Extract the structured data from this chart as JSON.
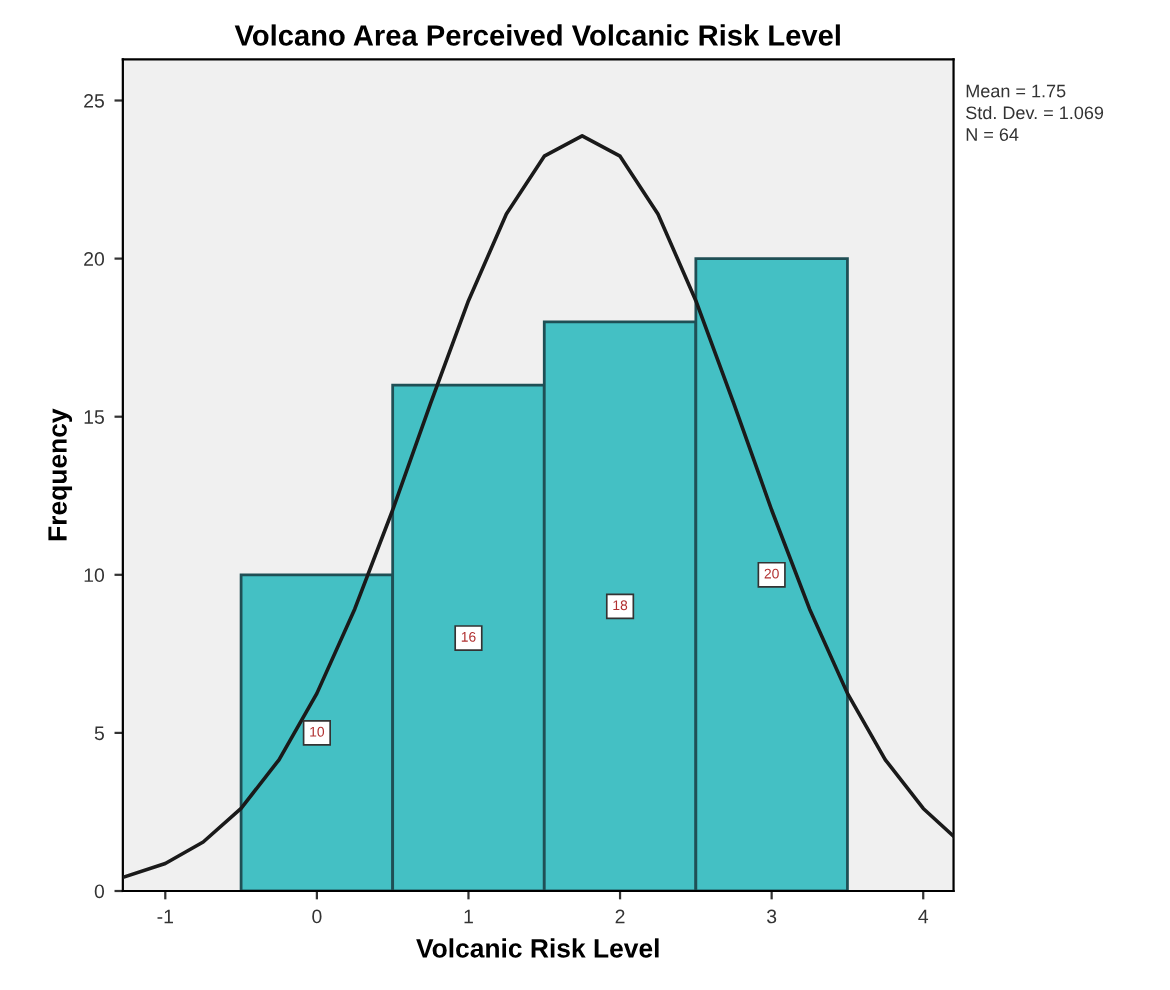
{
  "chart_data": {
    "type": "histogram",
    "title": "Volcano Area Perceived Volcanic Risk Level",
    "xlabel": "Volcanic Risk Level",
    "ylabel": "Frequency",
    "annotations": [
      "Mean = 1.75",
      "Std. Dev. = 1.069",
      "N = 64"
    ],
    "series": [
      {
        "color": "#44c0c4",
        "bins": [
          -0.5,
          0.5,
          1.5,
          2.5,
          3.5
        ],
        "values": [
          10,
          16,
          18,
          20
        ],
        "value_labels": [
          "10",
          "16",
          "18",
          "20"
        ]
      },
      {
        "type": "line",
        "color": "#1a1a1a",
        "x": [
          -1.28,
          -1.0,
          -0.75,
          -0.5,
          -0.25,
          0,
          0.25,
          0.5,
          0.75,
          1.0,
          1.25,
          1.5,
          1.75,
          2.0,
          2.25,
          2.5,
          2.75,
          3.0,
          3.25,
          3.5,
          3.75,
          4.0,
          4.2
        ],
        "values": [
          0.43,
          0.87,
          1.55,
          2.61,
          4.15,
          6.25,
          8.92,
          12.05,
          15.42,
          18.67,
          21.41,
          23.24,
          23.88,
          23.24,
          21.41,
          18.67,
          15.42,
          12.05,
          8.92,
          6.25,
          4.15,
          2.61,
          1.73
        ]
      }
    ],
    "grid": false,
    "legend": false,
    "marker": "none",
    "line_style": "solid",
    "xlim": [
      -1.28,
      4.2
    ],
    "xticks": [
      -1,
      0,
      1,
      2,
      3,
      4
    ],
    "ylim": [
      0,
      26.3
    ],
    "yticks": [
      0,
      5,
      10,
      15,
      20,
      25
    ]
  }
}
